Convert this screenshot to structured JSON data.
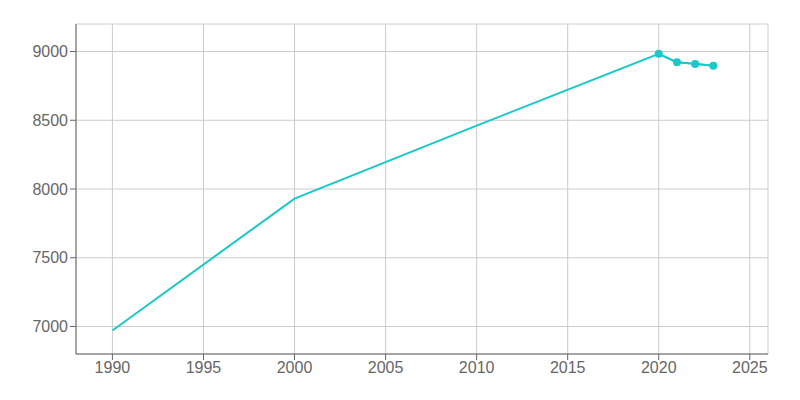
{
  "chart_data": {
    "type": "line",
    "x": [
      1990,
      2000,
      2010,
      2020,
      2021,
      2022,
      2023
    ],
    "series": [
      {
        "color": "#1BC8C8",
        "values": [
          6971,
          7930,
          8461,
          8983,
          8921,
          8910,
          8897
        ]
      },
      {
        "color": "#1BC8C8",
        "marker": "circle",
        "values": [
          null,
          null,
          null,
          8983,
          8921,
          8910,
          8897
        ]
      }
    ],
    "xlim": [
      1988,
      2026
    ],
    "ylim": [
      6800,
      9200
    ],
    "xticks": [
      1990,
      1995,
      2000,
      2005,
      2010,
      2015,
      2020,
      2025
    ],
    "yticks": [
      7000,
      7500,
      8000,
      8500,
      9000
    ],
    "grid": true
  }
}
